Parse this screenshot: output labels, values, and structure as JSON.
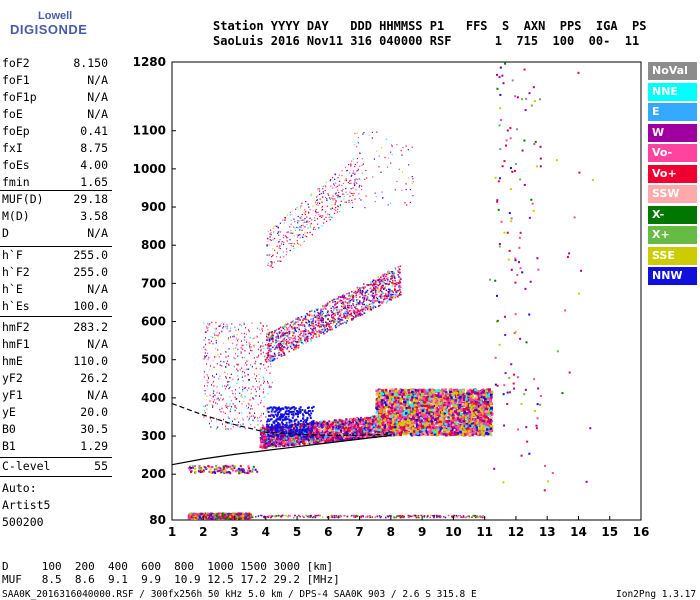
{
  "logo": {
    "line1": "Lowell",
    "line2": "DIGISONDE"
  },
  "header": {
    "row1": "Station YYYY DAY   DDD HHMMSS P1   FFS  S  AXN  PPS  IGA  PS",
    "row2": "SaoLuis 2016 Nov11 316 040000 RSF      1  715  100  00-  11"
  },
  "params_group1": [
    {
      "key": "foF2",
      "val": "8.150"
    },
    {
      "key": "foF1",
      "val": "N/A"
    },
    {
      "key": "foF1p",
      "val": "N/A"
    },
    {
      "key": "foE",
      "val": "N/A"
    },
    {
      "key": "foEp",
      "val": "0.41"
    },
    {
      "key": "fxI",
      "val": "8.75"
    },
    {
      "key": "foEs",
      "val": "4.00"
    },
    {
      "key": "fmin",
      "val": "1.65"
    }
  ],
  "params_group2": [
    {
      "key": "MUF(D)",
      "val": "29.18"
    },
    {
      "key": "M(D)",
      "val": "3.58"
    },
    {
      "key": "D",
      "val": "N/A"
    }
  ],
  "params_group3": [
    {
      "key": "h`F",
      "val": "255.0"
    },
    {
      "key": "h`F2",
      "val": "255.0"
    },
    {
      "key": "h`E",
      "val": "N/A"
    },
    {
      "key": "h`Es",
      "val": "100.0"
    }
  ],
  "params_group4": [
    {
      "key": "hmF2",
      "val": "283.2"
    },
    {
      "key": "hmF1",
      "val": "N/A"
    },
    {
      "key": "hmE",
      "val": "110.0"
    },
    {
      "key": "yF2",
      "val": "26.2"
    },
    {
      "key": "yF1",
      "val": "N/A"
    },
    {
      "key": "yE",
      "val": "20.0"
    },
    {
      "key": "B0",
      "val": "30.5"
    },
    {
      "key": "B1",
      "val": "1.29"
    }
  ],
  "clevel": {
    "key": "C-level",
    "val": "55"
  },
  "auto": [
    "Auto:",
    "Artist5",
    "500200"
  ],
  "legend": [
    {
      "label": "NoVal",
      "color": "#8c8c8c"
    },
    {
      "label": "NNE",
      "color": "#00ffff"
    },
    {
      "label": "E",
      "color": "#33aaff"
    },
    {
      "label": "W",
      "color": "#a000a0"
    },
    {
      "label": "Vo-",
      "color": "#ff44a0"
    },
    {
      "label": "Vo+",
      "color": "#f00030"
    },
    {
      "label": "SSW",
      "color": "#ffaaaa"
    },
    {
      "label": "X-",
      "color": "#007800"
    },
    {
      "label": "X+",
      "color": "#66bb44"
    },
    {
      "label": "SSE",
      "color": "#cccc00"
    },
    {
      "label": "NNW",
      "color": "#1010dd"
    }
  ],
  "footer": {
    "d_row": "D     100  200  400  600  800  1000 1500 3000 [km]",
    "muf_row": "MUF   8.5  8.6  9.1  9.9  10.9 12.5 17.2 29.2 [MHz]",
    "info": "SAA0K_2016316040000.RSF / 300fx256h 50 kHz 5.0 km / DPS-4 SAA0K 903 / 2.6 S 315.8 E",
    "version": "Ion2Png 1.3.17"
  },
  "chart_data": {
    "type": "scatter",
    "xlabel": "",
    "ylabel": "",
    "xlim": [
      1,
      16
    ],
    "ylim": [
      80,
      1280
    ],
    "x_ticks": [
      1,
      2,
      3,
      4,
      5,
      6,
      7,
      8,
      9,
      10,
      11,
      12,
      13,
      14,
      15,
      16
    ],
    "y_ticks": [
      80,
      200,
      300,
      400,
      500,
      600,
      700,
      800,
      900,
      1000,
      1100,
      1280
    ],
    "traces": [
      {
        "name": "trace_lower",
        "points": [
          [
            1,
            225
          ],
          [
            2,
            240
          ],
          [
            3,
            252
          ],
          [
            4,
            262
          ],
          [
            5,
            272
          ],
          [
            6,
            282
          ],
          [
            7,
            292
          ],
          [
            8,
            302
          ]
        ]
      },
      {
        "name": "trace_upper",
        "points": [
          [
            1,
            385
          ],
          [
            2,
            355
          ],
          [
            3,
            330
          ],
          [
            4,
            310
          ],
          [
            5,
            305
          ],
          [
            6,
            302
          ],
          [
            7,
            302
          ],
          [
            8,
            305
          ]
        ]
      }
    ],
    "echo_regions": [
      {
        "x": [
          1.5,
          3.5
        ],
        "y": [
          85,
          100
        ],
        "label": "Es"
      },
      {
        "x": [
          3.8,
          8.2
        ],
        "y": [
          280,
          340
        ],
        "label": "F"
      },
      {
        "x": [
          7.5,
          11.2
        ],
        "y": [
          300,
          430
        ],
        "label": "F-spread"
      },
      {
        "x": [
          4,
          8.3
        ],
        "y": [
          520,
          740
        ],
        "label": "2F"
      },
      {
        "x": [
          4,
          7
        ],
        "y": [
          780,
          1000
        ],
        "label": "3F"
      }
    ]
  }
}
